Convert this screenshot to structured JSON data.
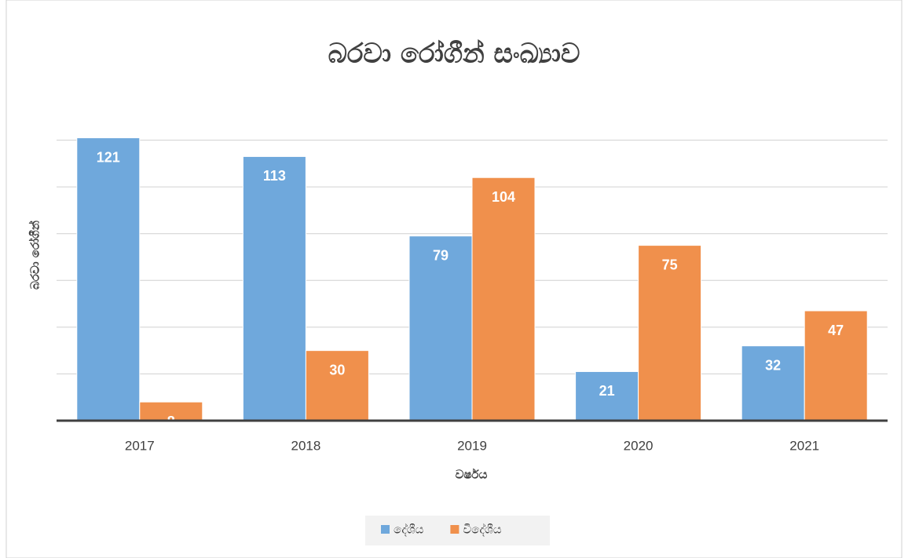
{
  "chart_data": {
    "type": "bar",
    "title": "බරවා රෝගීන් සංඛ්‍යාව",
    "x_label": "වර්ෂය",
    "y_label": "බරවා රෝගීන්",
    "categories": [
      "2017",
      "2018",
      "2019",
      "2020",
      "2021"
    ],
    "series": [
      {
        "name": "දේශීය",
        "color": "#6fa8dc",
        "values": [
          121,
          113,
          79,
          21,
          32
        ]
      },
      {
        "name": "විදේශීය",
        "color": "#f0904c",
        "values": [
          8,
          30,
          104,
          75,
          47
        ]
      }
    ],
    "ylim": [
      0,
      140
    ],
    "yticks": [
      0,
      20,
      40,
      60,
      80,
      100,
      120
    ],
    "grid": true,
    "legend": "bottom"
  }
}
